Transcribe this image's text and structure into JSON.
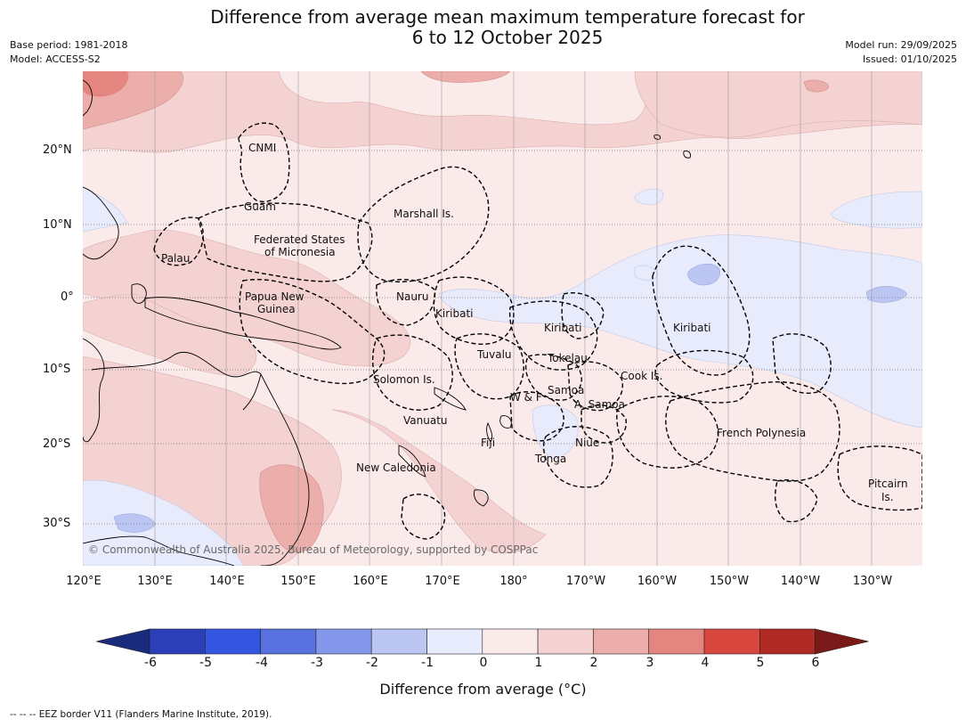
{
  "title": {
    "line1": "Difference from average mean maximum temperature forecast for",
    "line2": "6 to 12 October 2025"
  },
  "meta": {
    "base_period": "Base period: 1981-2018",
    "model": "Model: ACCESS-S2",
    "model_run": "Model run: 29/09/2025",
    "issued": "Issued: 01/10/2025"
  },
  "axes": {
    "latitudes": [
      "20°N",
      "10°N",
      "0°",
      "10°S",
      "20°S",
      "30°S"
    ],
    "longitudes": [
      "120°E",
      "130°E",
      "140°E",
      "150°E",
      "160°E",
      "170°E",
      "180°",
      "170°W",
      "160°W",
      "150°W",
      "140°W",
      "130°W"
    ]
  },
  "regions": {
    "cnmi": "CNMI",
    "guam": "Guam",
    "marshall": "Marshall Is.",
    "fsm_1": "Federated States",
    "fsm_2": "of Micronesia",
    "palau": "Palau",
    "png_1": "Papua New",
    "png_2": "Guinea",
    "nauru": "Nauru",
    "kiribati_w": "Kiribati",
    "kiribati_c": "Kiribati",
    "kiribati_e": "Kiribati",
    "tuvalu": "Tuvalu",
    "tokelau": "Tokelau",
    "cook": "Cook Is.",
    "solomon": "Solomon Is.",
    "wf": "W & F",
    "samoa": "Samoa",
    "asamoa": "A. Samoa",
    "vanuatu": "Vanuatu",
    "fiji": "Fiji",
    "niue": "Niue",
    "tonga": "Tonga",
    "french_polynesia": "French Polynesia",
    "new_caledonia": "New Caledonia",
    "pitcairn_1": "Pitcairn",
    "pitcairn_2": "Is."
  },
  "copyright": "© Commonwealth of Australia 2025, Bureau of Meteorology, supported by COSPPac",
  "colorbar": {
    "ticks": [
      "-6",
      "-5",
      "-4",
      "-3",
      "-2",
      "-1",
      "0",
      "1",
      "2",
      "3",
      "4",
      "5",
      "6"
    ],
    "colors": [
      "#1a2a7c",
      "#2a3fb8",
      "#3355e0",
      "#5a72e0",
      "#8597ea",
      "#bcc6f2",
      "#e7ebfb",
      "#fbeaea",
      "#f4d2d2",
      "#ecaeaa",
      "#e48580",
      "#d8473e",
      "#ae2a22",
      "#7a1a18"
    ],
    "label": "Difference from average (°C)"
  },
  "legend": "--  --  -- EEZ border V11 (Flanders Marine Institute, 2019)."
}
